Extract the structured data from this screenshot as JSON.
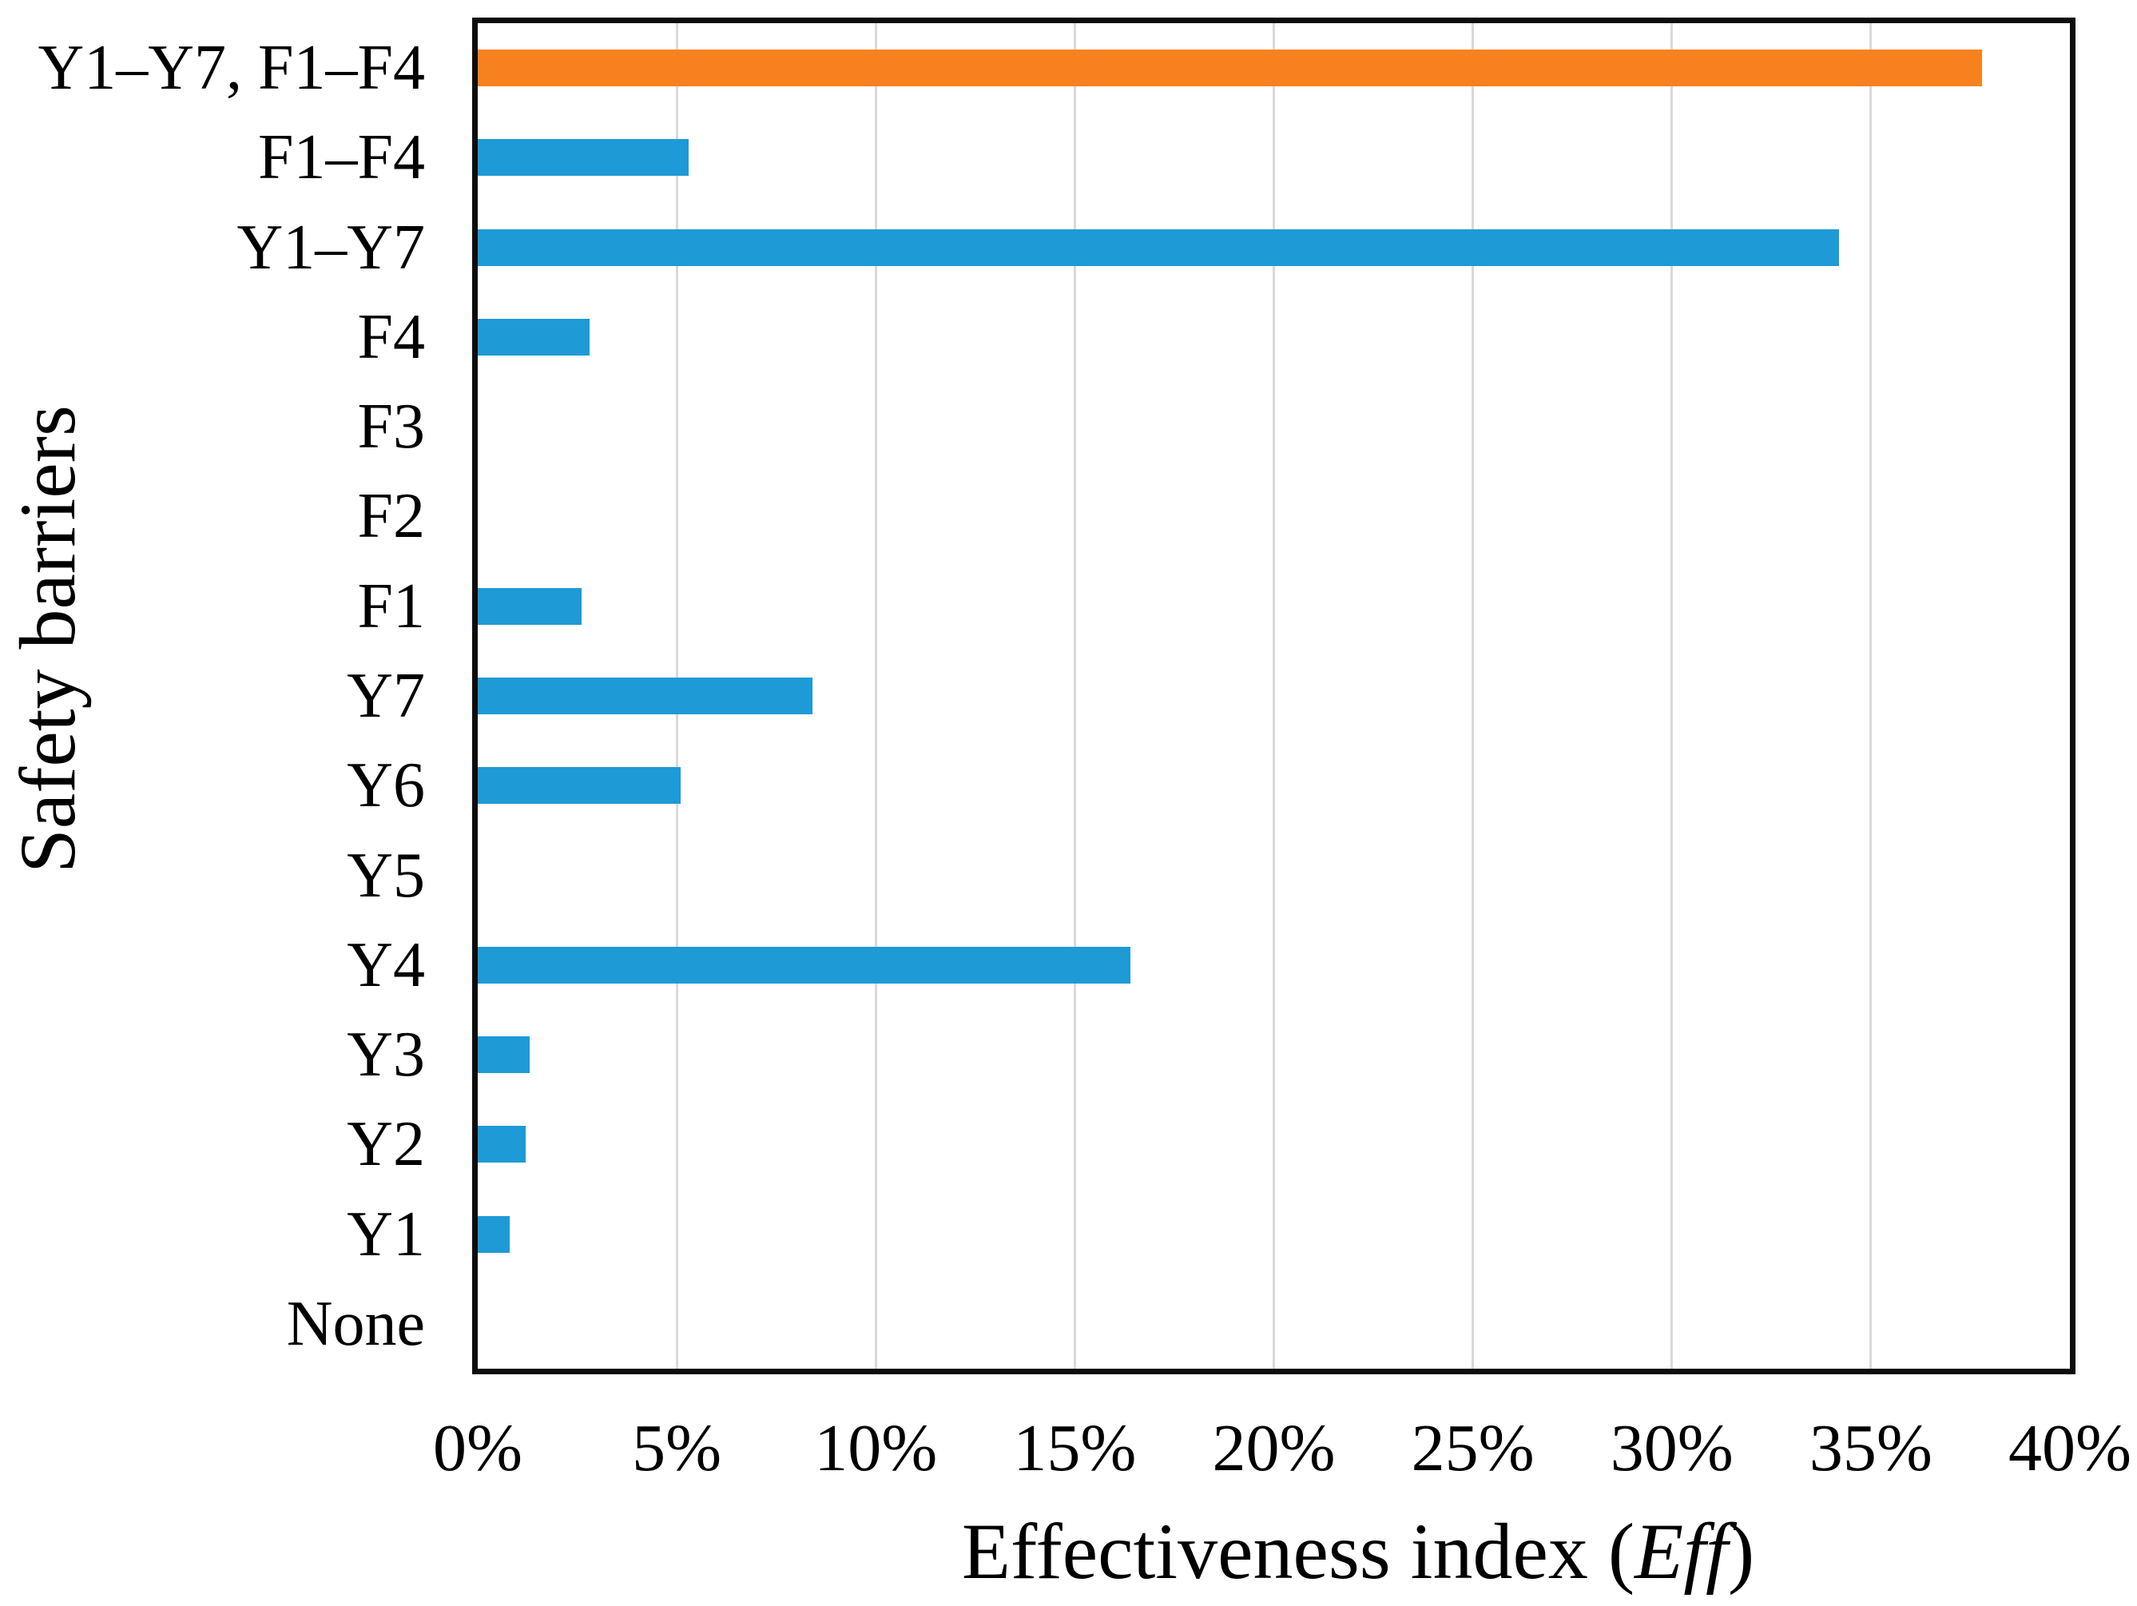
{
  "chart_data": {
    "type": "bar",
    "orientation": "horizontal",
    "title": "",
    "ylabel": "Safety barriers",
    "xlabel_prefix": "Effectiveness index (",
    "xlabel_italic": "Eff",
    "xlabel_suffix": ")",
    "categories_top_to_bottom": [
      "Y1–Y7, F1–F4",
      "F1–F4",
      "Y1–Y7",
      "F4",
      "F3",
      "F2",
      "F1",
      "Y7",
      "Y6",
      "Y5",
      "Y4",
      "Y3",
      "Y2",
      "Y1",
      "None"
    ],
    "values_percent": [
      37.8,
      5.3,
      34.2,
      2.8,
      0,
      0,
      2.6,
      8.4,
      5.1,
      0,
      16.4,
      1.3,
      1.2,
      0.8,
      0
    ],
    "highlight_index": 0,
    "xlim_percent": [
      0,
      40
    ],
    "x_tick_step_percent": 5,
    "x_tick_labels": [
      "0%",
      "5%",
      "10%",
      "15%",
      "20%",
      "25%",
      "30%",
      "35%",
      "40%"
    ],
    "grid": "vertical-gridlines-every-5-percent",
    "legend": "none",
    "colors": {
      "default_bar": "#1e9ad6",
      "highlight_bar": "#f8811f",
      "gridline": "#d9d9d9",
      "axis_border": "#0d0d0d",
      "text": "#000000",
      "background": "#ffffff"
    }
  }
}
